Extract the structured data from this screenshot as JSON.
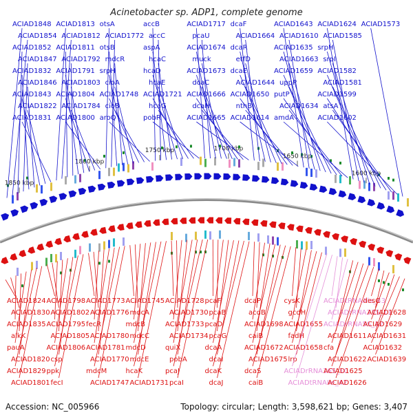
{
  "title": "Acinetobacter sp. ADP1, complete genome",
  "footer": {
    "accession": "Accession: NC_005966",
    "summary": "Topology: circular; Length: 3,598,621 bp; Genes: 3,407"
  },
  "colors": {
    "forward": "#1111cc",
    "reverse": "#dd1111",
    "rna": "#e58fd8",
    "backbone": "#8a8a8a"
  },
  "scale_marks": [
    "1850 kbp",
    "1800 kbp",
    "1750 kbp",
    "1700 kbp",
    "1650 kbp",
    "1600 kbp"
  ],
  "top_genes": [
    "ACIAD1848",
    "ACIAD1854",
    "ACIAD1852",
    "ACIAD1847",
    "ACIAD1832",
    "ACIAD1846",
    "ACIAD1843",
    "ACIAD1822",
    "ACIAD1831",
    "ACIAD1813",
    "ACIAD1812",
    "ACIAD1811",
    "ACIAD1792",
    "ACIAD1791",
    "ACIAD1803",
    "ACIAD1804",
    "ACIAD1784",
    "ACIAD1800",
    "otsA",
    "ACIAD1772",
    "otsB",
    "mdcR",
    "srpH",
    "cioA",
    "ACIAD1748",
    "cioB",
    "aroQ",
    "accB",
    "accC",
    "aspA",
    "hcaC",
    "hcaD",
    "hcaE",
    "ACIAD1721",
    "hcaG",
    "pobR",
    "ACIAD1717",
    "pcaU",
    "ACIAD1674",
    "muck",
    "ACIAD1673",
    "dcaC",
    "ACIAD1666",
    "dcaH",
    "ACIAD1665",
    "dcaF",
    "ACIAD1664",
    "dcaR",
    "etfD",
    "dcaE",
    "ACIAD1644",
    "ACIAD1650",
    "nthB",
    "ACIAD1614",
    "ACIAD1643",
    "ACIAD1610",
    "ACIAD1635",
    "ACIAD1663",
    "ACIAD1659",
    "uppP",
    "putP",
    "ACIAD1634",
    "amdA",
    "ACIAD1624",
    "ACIAD1585",
    "srpH",
    "srpI",
    "ACIAD1582",
    "ACIAD1581",
    "ACIAD1599",
    "atsA",
    "ACIAD1602",
    "ACIAD1573"
  ],
  "bottom_genes": [
    "ACIAD1824",
    "ACIAD1830",
    "ACIAD1835",
    "alkK",
    "pauA",
    "ACIAD1820",
    "ACIAD1829",
    "ACIAD1801",
    "ACIAD1798",
    "ACIAD1802",
    "ACIAD1795",
    "ACIAD1805",
    "ACIAD1806",
    "csp",
    "ppk",
    "fecI",
    "ACIAD1773",
    "ACIAD1776",
    "fecR",
    "ACIAD1780",
    "ACIAD1781",
    "ACIAD1770",
    "mdcM",
    "ACIAD1747",
    "ACIAD1745",
    "mdcA",
    "mdcB",
    "mdcC",
    "mdcD",
    "mdcE",
    "hcaK",
    "ACIAD1731",
    "ACIAD1728",
    "ACIAD1730",
    "ACIAD1733",
    "ACIAD1734",
    "quiX",
    "pobA",
    "pcaJ",
    "pcaI",
    "pcaF",
    "pcaB",
    "pcaD",
    "pcaG",
    "dcaA",
    "dcaI",
    "dcaK",
    "dcaJ",
    "dcaP",
    "acdB",
    "ACIAD1698",
    "caiB",
    "ACIAD1672",
    "ACIAD1675",
    "dcaS",
    "caiB",
    "cysK",
    "gcdH",
    "ACIAD1655",
    "fadH",
    "ACIAD1658",
    "lrp",
    "ACIADrRNA16S_10",
    "ACIADtRNAIle_42",
    "ACIADtRNAAla_43",
    "ACIADrRNA23S_11",
    "ACIADrRNA5S_12",
    "ACIAD1611",
    "cfa",
    "ACIAD1622",
    "ACIAD1625",
    "ACIAD1626",
    "desC",
    "ACIAD1628",
    "ACIAD1629",
    "ACIAD1631",
    "ACIAD1632",
    "ACIAD1639"
  ]
}
